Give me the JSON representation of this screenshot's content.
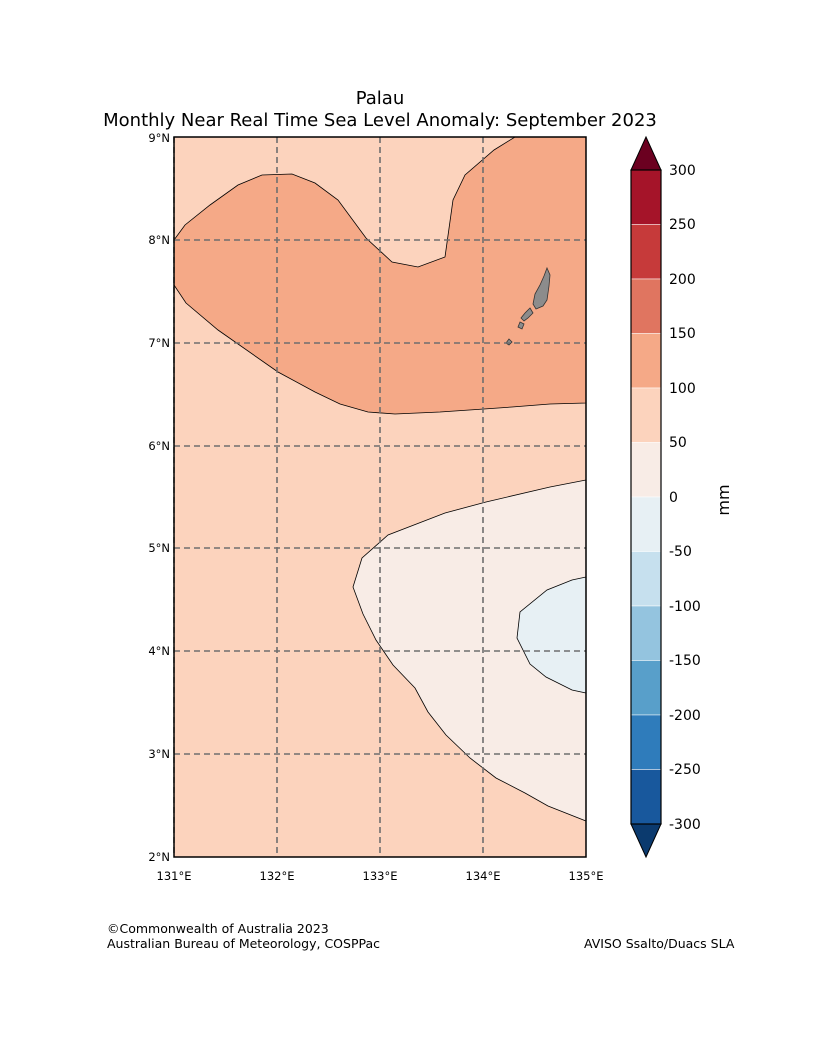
{
  "title": {
    "line1": "Palau",
    "line2": "Monthly Near Real Time Sea Level Anomaly: September 2023"
  },
  "map": {
    "lon_labels": [
      "131°E",
      "132°E",
      "133°E",
      "134°E",
      "135°E"
    ],
    "lat_labels": [
      "9°N",
      "8°N",
      "7°N",
      "6°N",
      "5°N",
      "4°N",
      "3°N",
      "2°N"
    ],
    "lon_range": [
      131,
      135
    ],
    "lat_range": [
      2,
      9
    ],
    "island": "Palau"
  },
  "colorbar": {
    "unit_label": "mm",
    "tick_labels": [
      "300",
      "250",
      "200",
      "150",
      "100",
      "50",
      "0",
      "-50",
      "-100",
      "-150",
      "-200",
      "-250",
      "-300"
    ],
    "colors": [
      "#a51429",
      "#c63a3a",
      "#e07560",
      "#f5a987",
      "#fcd3bd",
      "#f8ece6",
      "#e7f0f4",
      "#c6e0ee",
      "#94c4df",
      "#589fca",
      "#2f7cbb",
      "#18589d"
    ],
    "over_color": "#6b0020",
    "under_color": "#0b3a6e"
  },
  "fill_colors": {
    "band_50_100": "#fcd3bd",
    "band_100_150": "#f5a987",
    "band_0_50": "#f8ece6",
    "band_m50_0": "#e7f0f4",
    "land": "#8c8c8c"
  },
  "footer": {
    "copyright": "©Commonwealth of Australia 2023",
    "bureau": "Australian Bureau of Meteorology, COSPPac",
    "source": "AVISO Ssalto/Duacs SLA"
  }
}
